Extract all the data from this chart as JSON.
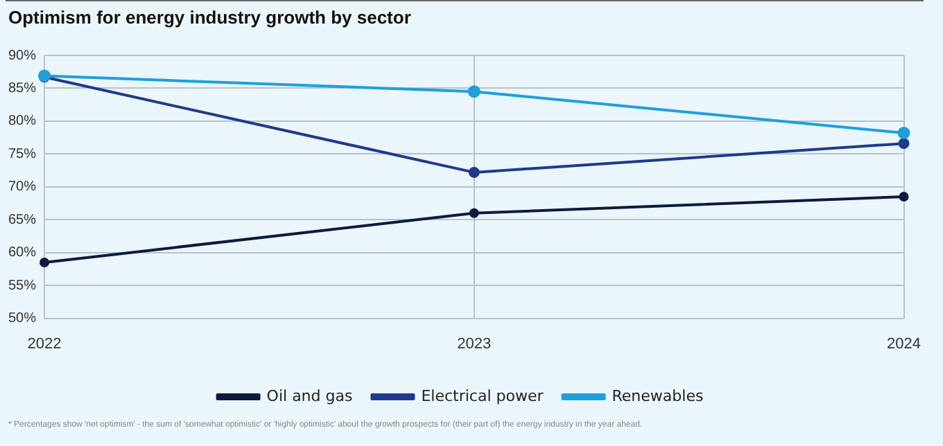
{
  "chart_data": {
    "type": "line",
    "title": "Optimism for energy industry growth by sector",
    "categories": [
      "2022",
      "2023",
      "2024"
    ],
    "series": [
      {
        "name": "Oil and gas",
        "color": "#0d1a3d",
        "values": [
          58.5,
          66.0,
          68.5
        ]
      },
      {
        "name": "Electrical power",
        "color": "#1f3a8a",
        "values": [
          86.7,
          72.2,
          76.6
        ]
      },
      {
        "name": "Renewables",
        "color": "#1ea0d8",
        "values": [
          86.9,
          84.5,
          78.2
        ]
      }
    ],
    "ylim": [
      50,
      90
    ],
    "yticks": [
      {
        "value": 50,
        "label": "50%"
      },
      {
        "value": 55,
        "label": "55%"
      },
      {
        "value": 60,
        "label": "60%"
      },
      {
        "value": 65,
        "label": "65%"
      },
      {
        "value": 70,
        "label": "70%"
      },
      {
        "value": 75,
        "label": "75%"
      },
      {
        "value": 80,
        "label": "80%"
      },
      {
        "value": 85,
        "label": "85%"
      },
      {
        "value": 90,
        "label": "90%"
      }
    ],
    "grid": true,
    "legend": "bottom",
    "marker": "circle",
    "line_style": "solid",
    "annotations": [
      "* Percentages show 'net optimism' - the sum of 'somewhat optimistic' or 'highly optimistic' about the growth prospects for (their part of) the energy industry in the year ahead."
    ]
  }
}
